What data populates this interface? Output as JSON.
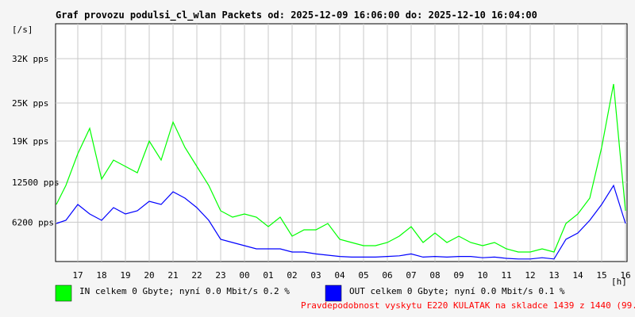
{
  "chart_data": {
    "type": "line",
    "title": "Graf provozu podulsi_cl_wlan Packets od: 2025-12-09 16:06:00 do: 2025-12-10 16:04:00",
    "y_unit_label": "[/s]",
    "x_unit_label": "[h]",
    "ylim": [
      0,
      37500
    ],
    "y_ticks": [
      {
        "value": 6200,
        "label": "6200 pps"
      },
      {
        "value": 12500,
        "label": "12500 pps"
      },
      {
        "value": 19000,
        "label": "19K pps"
      },
      {
        "value": 25000,
        "label": "25K pps"
      },
      {
        "value": 32000,
        "label": "32K pps"
      }
    ],
    "x_ticks": [
      "17",
      "18",
      "19",
      "20",
      "21",
      "22",
      "23",
      "00",
      "01",
      "02",
      "03",
      "04",
      "05",
      "06",
      "07",
      "08",
      "09",
      "10",
      "11",
      "12",
      "13",
      "14",
      "15",
      "16"
    ],
    "x": [
      16.1,
      16.5,
      17.0,
      17.5,
      18.0,
      18.5,
      19.0,
      19.5,
      20.0,
      20.5,
      21.0,
      21.5,
      22.0,
      22.5,
      23.0,
      23.5,
      24.0,
      24.5,
      25.0,
      25.5,
      26.0,
      26.5,
      27.0,
      27.5,
      28.0,
      28.5,
      29.0,
      29.5,
      30.0,
      30.5,
      31.0,
      31.5,
      32.0,
      32.5,
      33.0,
      33.5,
      34.0,
      34.5,
      35.0,
      35.5,
      36.0,
      36.5,
      37.0,
      37.5,
      38.0,
      38.5,
      39.0,
      39.5,
      40.0
    ],
    "series": [
      {
        "name": "IN",
        "color": "#00ff00",
        "values": [
          9000,
          12000,
          17000,
          21000,
          13000,
          16000,
          15000,
          14000,
          19000,
          16000,
          22000,
          18000,
          15000,
          12000,
          8000,
          7000,
          7500,
          7000,
          5500,
          7000,
          4000,
          5000,
          5000,
          6000,
          3500,
          3000,
          2500,
          2500,
          3000,
          4000,
          5500,
          3000,
          4500,
          3000,
          4000,
          3000,
          2500,
          3000,
          2000,
          1500,
          1500,
          2000,
          1500,
          6000,
          7500,
          10000,
          18000,
          28000,
          8000
        ]
      },
      {
        "name": "OUT",
        "color": "#0000ff",
        "values": [
          6000,
          6500,
          9000,
          7500,
          6500,
          8500,
          7500,
          8000,
          9500,
          9000,
          11000,
          10000,
          8500,
          6500,
          3500,
          3000,
          2500,
          2000,
          2000,
          2000,
          1500,
          1500,
          1200,
          1000,
          800,
          700,
          700,
          700,
          800,
          900,
          1200,
          700,
          800,
          700,
          800,
          800,
          600,
          700,
          500,
          400,
          400,
          600,
          400,
          3500,
          4500,
          6500,
          9000,
          12000,
          6000
        ]
      }
    ],
    "legend": [
      {
        "name": "IN",
        "color": "#00ff00",
        "text": "IN celkem 0 Gbyte; nyní   0.0 Mbit/s 0.2 %"
      },
      {
        "name": "OUT",
        "color": "#0000ff",
        "text": "OUT celkem 0 Gbyte; nyní   0.0 Mbit/s 0.1 %"
      }
    ],
    "note": "Pravdepodobnost vyskytu E220 KULATAK na skladce 1439 z 1440 (99.9 %)",
    "note_color": "#ff0000",
    "grid": true
  }
}
